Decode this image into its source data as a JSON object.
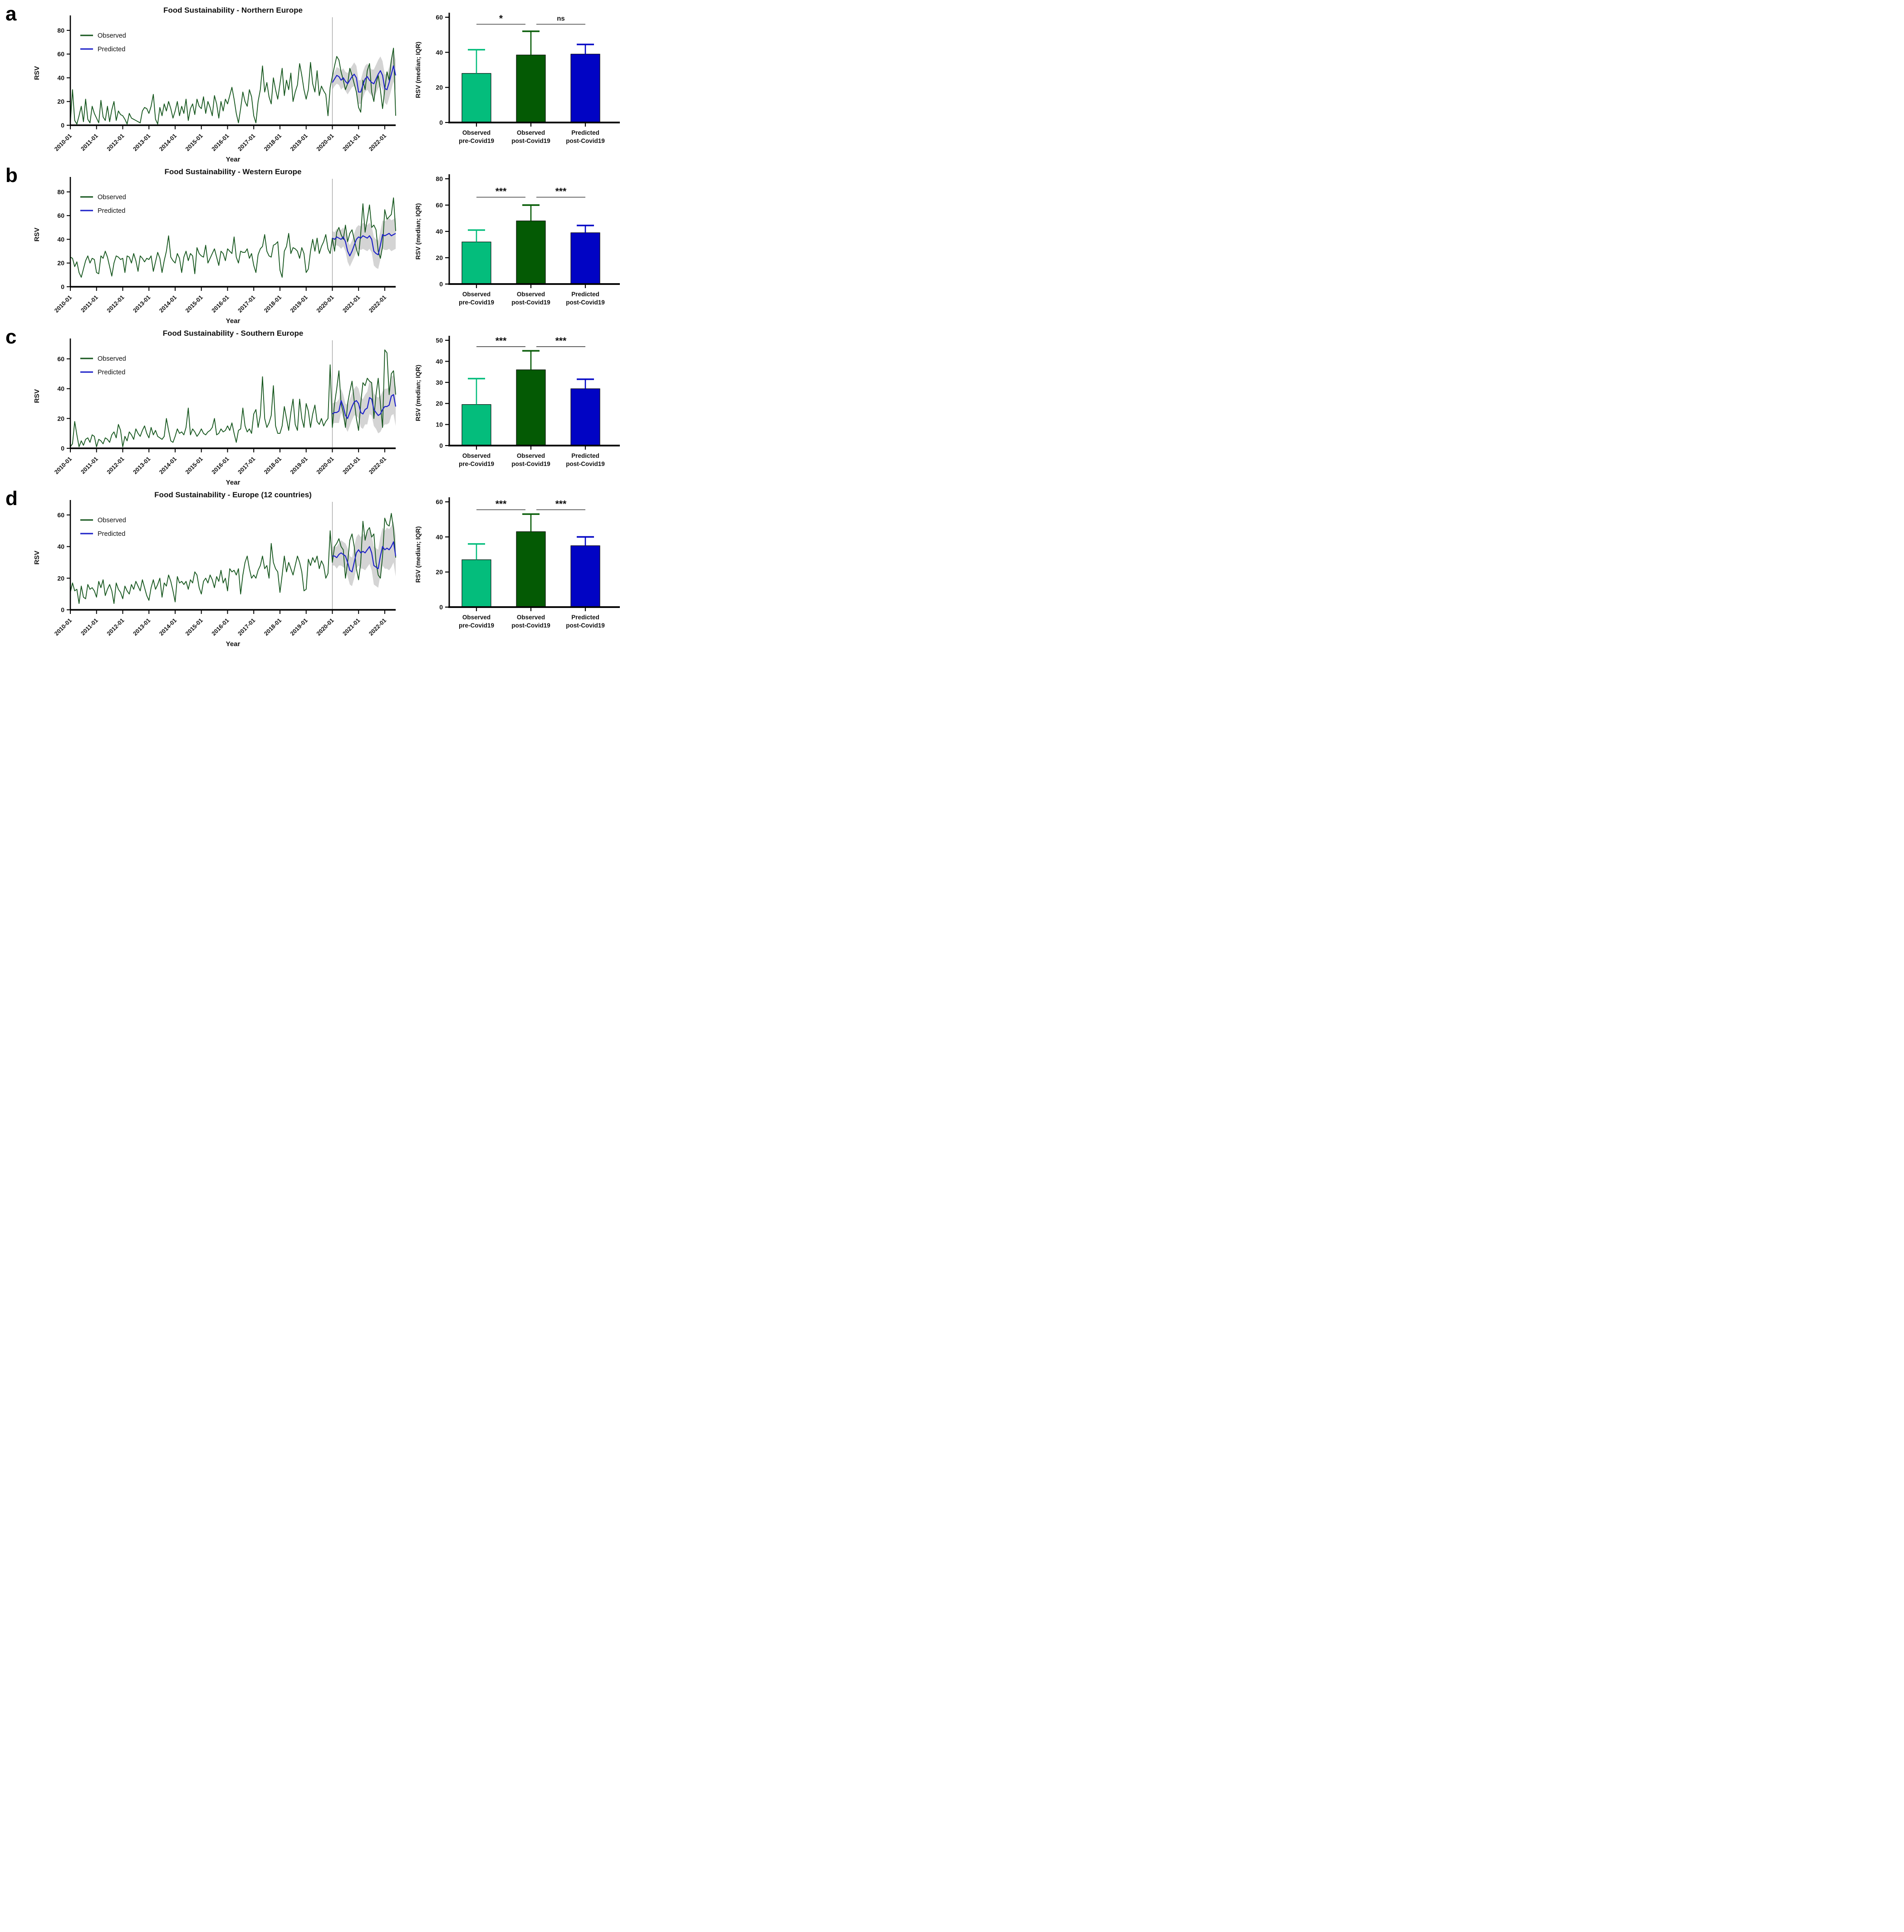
{
  "colors": {
    "observed_line": "#15561d",
    "predicted_line": "#1c20c8",
    "ci_band": "#c9c9c9",
    "divider": "#9a9a9a",
    "bracket": "#5a5a5a",
    "bar_pre_covid": "#04bd7c",
    "bar_post_covid_observed": "#045a04",
    "bar_post_covid_predicted": "#0104c4"
  },
  "chart_data": [
    {
      "panel": "a",
      "type": "line",
      "title": "Food Sustainability - Northern Europe",
      "xlabel": "Year",
      "ylabel": "RSV",
      "legend": [
        "Observed",
        "Predicted"
      ],
      "yticks": [
        0,
        20,
        40,
        60,
        80
      ],
      "ymax": 88,
      "xtick_labels": [
        "2010-01",
        "2011-01",
        "2012-01",
        "2013-01",
        "2014-01",
        "2015-01",
        "2016-01",
        "2017-01",
        "2018-01",
        "2019-01",
        "2020-01",
        "2021-01",
        "2022-01"
      ],
      "divider_index": 120,
      "pred_start": 120,
      "observed": [
        2,
        30,
        4,
        1,
        8,
        16,
        3,
        22,
        5,
        2,
        16,
        10,
        6,
        2,
        21,
        7,
        4,
        16,
        3,
        13,
        20,
        4,
        12,
        9,
        8,
        5,
        1,
        10,
        6,
        5,
        4,
        3,
        2,
        12,
        15,
        14,
        10,
        16,
        26,
        5,
        1,
        15,
        8,
        18,
        12,
        20,
        14,
        6,
        12,
        20,
        8,
        16,
        10,
        22,
        4,
        14,
        18,
        9,
        22,
        16,
        14,
        24,
        10,
        20,
        15,
        8,
        25,
        18,
        6,
        20,
        12,
        22,
        18,
        25,
        32,
        22,
        10,
        2,
        14,
        28,
        20,
        16,
        30,
        24,
        8,
        2,
        20,
        30,
        50,
        28,
        36,
        24,
        18,
        40,
        30,
        22,
        35,
        48,
        25,
        38,
        30,
        44,
        20,
        28,
        34,
        52,
        42,
        30,
        22,
        30,
        53,
        35,
        28,
        46,
        25,
        33,
        29,
        26,
        8,
        32,
        41,
        50,
        58,
        55,
        45,
        38,
        30,
        35,
        48,
        42,
        35,
        28,
        15,
        11,
        38,
        30,
        46,
        52,
        28,
        20,
        35,
        42,
        30,
        14,
        30,
        45,
        38,
        55,
        65,
        8
      ],
      "predicted": [
        36,
        39,
        42,
        41,
        38,
        40,
        37,
        35,
        38,
        41,
        43,
        40,
        28,
        28,
        34,
        39,
        41,
        38,
        36,
        35,
        39,
        43,
        46,
        42,
        31,
        30,
        36,
        43,
        50,
        42
      ],
      "ci_lower": [
        30,
        33,
        35,
        34,
        30,
        32,
        29,
        26,
        29,
        32,
        33,
        30,
        18,
        18,
        23,
        28,
        30,
        27,
        25,
        23,
        27,
        31,
        34,
        30,
        19,
        17,
        23,
        30,
        37,
        29
      ],
      "ci_upper": [
        42,
        45,
        49,
        48,
        46,
        48,
        45,
        44,
        47,
        50,
        53,
        50,
        38,
        38,
        45,
        50,
        52,
        49,
        47,
        47,
        51,
        55,
        58,
        54,
        43,
        43,
        49,
        56,
        63,
        55
      ]
    },
    {
      "panel": "a",
      "type": "bar",
      "ylabel": "RSV (median; IQR)",
      "yticks": [
        0,
        20,
        40,
        60
      ],
      "ymax": 60,
      "categories": [
        [
          "Observed",
          "pre-Covid19"
        ],
        [
          "Observed",
          "post-Covid19"
        ],
        [
          "Predicted",
          "post-Covid19"
        ]
      ],
      "values": [
        28,
        38.5,
        39
      ],
      "errors_upper": [
        41.5,
        52,
        44.5
      ],
      "bar_color_keys": [
        "bar_pre_covid",
        "bar_post_covid_observed",
        "bar_post_covid_predicted"
      ],
      "significance": [
        {
          "pair": [
            0,
            1
          ],
          "label": "*"
        },
        {
          "pair": [
            1,
            2
          ],
          "label": "ns"
        }
      ],
      "sig_y": 56
    },
    {
      "panel": "b",
      "type": "line",
      "title": "Food Sustainability - Western Europe",
      "xlabel": "Year",
      "ylabel": "RSV",
      "legend": [
        "Observed",
        "Predicted"
      ],
      "yticks": [
        0,
        20,
        40,
        60,
        80
      ],
      "ymax": 88,
      "xtick_labels": [
        "2010-01",
        "2011-01",
        "2012-01",
        "2013-01",
        "2014-01",
        "2015-01",
        "2016-01",
        "2017-01",
        "2018-01",
        "2019-01",
        "2020-01",
        "2021-01",
        "2022-01"
      ],
      "divider_index": 120,
      "pred_start": 120,
      "observed": [
        25,
        24,
        17,
        21,
        12,
        8,
        15,
        22,
        26,
        20,
        24,
        23,
        12,
        11,
        26,
        24,
        30,
        25,
        17,
        9,
        20,
        26,
        25,
        23,
        24,
        12,
        26,
        25,
        20,
        28,
        22,
        13,
        26,
        24,
        21,
        24,
        23,
        26,
        13,
        21,
        29,
        24,
        12,
        22,
        30,
        43,
        25,
        22,
        20,
        28,
        24,
        12,
        25,
        30,
        22,
        28,
        26,
        11,
        33,
        28,
        26,
        25,
        35,
        20,
        24,
        28,
        32,
        25,
        18,
        30,
        28,
        22,
        32,
        30,
        28,
        42,
        25,
        20,
        30,
        29,
        29,
        32,
        24,
        28,
        18,
        12,
        27,
        32,
        34,
        44,
        30,
        26,
        25,
        35,
        36,
        38,
        14,
        8,
        30,
        34,
        45,
        28,
        33,
        32,
        30,
        24,
        33,
        28,
        12,
        15,
        30,
        40,
        30,
        41,
        28,
        34,
        38,
        44,
        32,
        28,
        41,
        30,
        46,
        50,
        44,
        40,
        52,
        38,
        45,
        48,
        40,
        32,
        26,
        45,
        70,
        46,
        57,
        69,
        50,
        52,
        48,
        30,
        24,
        34,
        65,
        57,
        59,
        61,
        75,
        47
      ],
      "predicted": [
        41,
        40,
        42,
        41,
        40,
        42,
        38,
        30,
        26,
        30,
        35,
        40,
        42,
        41,
        43,
        42,
        41,
        43,
        40,
        30,
        28,
        27,
        35,
        44,
        43,
        44,
        45,
        43,
        44,
        45
      ],
      "ci_lower": [
        35,
        34,
        35,
        34,
        32,
        34,
        30,
        21,
        17,
        21,
        25,
        30,
        32,
        31,
        32,
        31,
        30,
        32,
        29,
        18,
        16,
        15,
        23,
        32,
        31,
        31,
        32,
        30,
        31,
        32
      ],
      "ci_upper": [
        47,
        46,
        49,
        48,
        48,
        50,
        46,
        39,
        35,
        39,
        45,
        50,
        52,
        51,
        54,
        53,
        52,
        54,
        51,
        42,
        40,
        39,
        47,
        56,
        55,
        57,
        58,
        56,
        57,
        58
      ]
    },
    {
      "panel": "b",
      "type": "bar",
      "ylabel": "RSV (median; IQR)",
      "yticks": [
        0,
        20,
        40,
        60,
        80
      ],
      "ymax": 80,
      "categories": [
        [
          "Observed",
          "pre-Covid19"
        ],
        [
          "Observed",
          "post-Covid19"
        ],
        [
          "Predicted",
          "post-Covid19"
        ]
      ],
      "values": [
        32,
        48,
        39
      ],
      "errors_upper": [
        41,
        60,
        44.5
      ],
      "bar_color_keys": [
        "bar_pre_covid",
        "bar_post_covid_observed",
        "bar_post_covid_predicted"
      ],
      "significance": [
        {
          "pair": [
            0,
            1
          ],
          "label": "***"
        },
        {
          "pair": [
            1,
            2
          ],
          "label": "***"
        }
      ],
      "sig_y": 66
    },
    {
      "panel": "c",
      "type": "line",
      "title": "Food Sustainability - Southern Europe",
      "xlabel": "Year",
      "ylabel": "RSV",
      "legend": [
        "Observed",
        "Predicted"
      ],
      "yticks": [
        0,
        20,
        40,
        60
      ],
      "ymax": 70,
      "xtick_labels": [
        "2010-01",
        "2011-01",
        "2012-01",
        "2013-01",
        "2014-01",
        "2015-01",
        "2016-01",
        "2017-01",
        "2018-01",
        "2019-01",
        "2020-01",
        "2021-01",
        "2022-01"
      ],
      "divider_index": 120,
      "pred_start": 120,
      "observed": [
        1,
        3,
        18,
        9,
        1,
        5,
        2,
        6,
        7,
        4,
        9,
        8,
        1,
        6,
        5,
        3,
        7,
        6,
        4,
        9,
        11,
        7,
        16,
        12,
        1,
        8,
        5,
        11,
        9,
        6,
        13,
        10,
        8,
        12,
        15,
        10,
        7,
        14,
        9,
        12,
        8,
        7,
        6,
        8,
        20,
        12,
        5,
        4,
        8,
        13,
        10,
        11,
        9,
        14,
        27,
        9,
        13,
        11,
        8,
        10,
        13,
        10,
        9,
        11,
        12,
        14,
        20,
        9,
        10,
        13,
        11,
        12,
        15,
        12,
        17,
        10,
        4,
        12,
        13,
        27,
        15,
        11,
        13,
        10,
        23,
        26,
        14,
        22,
        48,
        20,
        14,
        17,
        22,
        42,
        15,
        10,
        10,
        15,
        28,
        20,
        12,
        24,
        33,
        16,
        12,
        33,
        20,
        14,
        30,
        25,
        14,
        23,
        29,
        18,
        16,
        20,
        15,
        18,
        20,
        56,
        14,
        30,
        40,
        52,
        30,
        24,
        14,
        30,
        38,
        45,
        32,
        20,
        12,
        30,
        44,
        42,
        47,
        45,
        44,
        20,
        36,
        47,
        30,
        14,
        66,
        64,
        36,
        50,
        52,
        36
      ],
      "predicted": [
        23,
        24,
        24,
        25,
        32,
        28,
        22,
        20,
        24,
        28,
        31,
        32,
        30,
        24,
        23,
        26,
        27,
        34,
        33,
        26,
        24,
        22,
        23,
        26,
        28,
        28,
        29,
        35,
        36,
        28
      ],
      "ci_lower": [
        16,
        17,
        17,
        17,
        24,
        20,
        14,
        11,
        15,
        19,
        22,
        22,
        20,
        14,
        13,
        16,
        16,
        23,
        22,
        15,
        13,
        10,
        11,
        14,
        16,
        16,
        17,
        22,
        23,
        15
      ],
      "ci_upper": [
        30,
        31,
        31,
        33,
        40,
        36,
        30,
        29,
        33,
        37,
        40,
        42,
        40,
        34,
        33,
        36,
        38,
        45,
        44,
        37,
        35,
        34,
        35,
        38,
        40,
        40,
        41,
        48,
        49,
        41
      ]
    },
    {
      "panel": "c",
      "type": "bar",
      "ylabel": "RSV (median; IQR)",
      "yticks": [
        0,
        10,
        20,
        30,
        40,
        50
      ],
      "ymax": 50,
      "categories": [
        [
          "Observed",
          "pre-Covid19"
        ],
        [
          "Observed",
          "post-Covid19"
        ],
        [
          "Predicted",
          "post-Covid19"
        ]
      ],
      "values": [
        19.5,
        36,
        27
      ],
      "errors_upper": [
        31.8,
        45,
        31.5
      ],
      "bar_color_keys": [
        "bar_pre_covid",
        "bar_post_covid_observed",
        "bar_post_covid_predicted"
      ],
      "significance": [
        {
          "pair": [
            0,
            1
          ],
          "label": "***"
        },
        {
          "pair": [
            1,
            2
          ],
          "label": "***"
        }
      ],
      "sig_y": 47
    },
    {
      "panel": "d",
      "type": "line",
      "title": "Food Sustainability - Europe (12 countries)",
      "xlabel": "Year",
      "ylabel": "RSV",
      "legend": [
        "Observed",
        "Predicted"
      ],
      "yticks": [
        0,
        20,
        40,
        60
      ],
      "ymax": 66,
      "xtick_labels": [
        "2010-01",
        "2011-01",
        "2012-01",
        "2013-01",
        "2014-01",
        "2015-01",
        "2016-01",
        "2017-01",
        "2018-01",
        "2019-01",
        "2020-01",
        "2021-01",
        "2022-01"
      ],
      "divider_index": 120,
      "pred_start": 120,
      "observed": [
        11,
        17,
        12,
        13,
        4,
        15,
        8,
        7,
        16,
        13,
        14,
        12,
        8,
        18,
        14,
        19,
        9,
        13,
        16,
        12,
        4,
        17,
        13,
        11,
        7,
        15,
        12,
        10,
        16,
        13,
        18,
        15,
        12,
        19,
        14,
        9,
        6,
        14,
        19,
        13,
        16,
        20,
        8,
        17,
        15,
        22,
        18,
        12,
        5,
        21,
        17,
        18,
        16,
        18,
        13,
        19,
        17,
        24,
        22,
        14,
        10,
        18,
        20,
        17,
        22,
        19,
        14,
        21,
        18,
        25,
        17,
        20,
        12,
        26,
        24,
        25,
        22,
        26,
        10,
        22,
        30,
        34,
        26,
        20,
        22,
        20,
        25,
        28,
        34,
        26,
        28,
        20,
        42,
        30,
        26,
        24,
        11,
        22,
        34,
        24,
        30,
        26,
        22,
        28,
        34,
        30,
        24,
        12,
        13,
        32,
        28,
        33,
        30,
        34,
        26,
        31,
        28,
        20,
        23,
        50,
        30,
        40,
        42,
        45,
        40,
        38,
        20,
        30,
        44,
        48,
        40,
        26,
        19,
        30,
        56,
        44,
        50,
        52,
        46,
        48,
        30,
        22,
        20,
        34,
        58,
        54,
        53,
        61,
        51,
        33
      ],
      "predicted": [
        34,
        34,
        33,
        35,
        36,
        35,
        34,
        30,
        25,
        24,
        30,
        36,
        38,
        36,
        37,
        36,
        38,
        40,
        36,
        28,
        27,
        26,
        34,
        40,
        38,
        39,
        38,
        40,
        43,
        34
      ],
      "ci_lower": [
        28,
        28,
        26,
        28,
        28,
        27,
        26,
        21,
        16,
        15,
        20,
        26,
        28,
        26,
        26,
        25,
        27,
        29,
        25,
        16,
        15,
        14,
        22,
        28,
        26,
        26,
        25,
        27,
        30,
        21
      ],
      "ci_upper": [
        40,
        40,
        40,
        42,
        44,
        43,
        42,
        39,
        34,
        33,
        40,
        46,
        48,
        46,
        48,
        47,
        49,
        51,
        47,
        40,
        39,
        38,
        46,
        52,
        50,
        52,
        51,
        53,
        56,
        47
      ]
    },
    {
      "panel": "d",
      "type": "bar",
      "ylabel": "RSV (median; IQR)",
      "yticks": [
        0,
        20,
        40,
        60
      ],
      "ymax": 60,
      "categories": [
        [
          "Observed",
          "pre-Covid19"
        ],
        [
          "Observed",
          "post-Covid19"
        ],
        [
          "Predicted",
          "post-Covid19"
        ]
      ],
      "values": [
        27,
        43,
        35
      ],
      "errors_upper": [
        36,
        53,
        40
      ],
      "bar_color_keys": [
        "bar_pre_covid",
        "bar_post_covid_observed",
        "bar_post_covid_predicted"
      ],
      "significance": [
        {
          "pair": [
            0,
            1
          ],
          "label": "***"
        },
        {
          "pair": [
            1,
            2
          ],
          "label": "***"
        }
      ],
      "sig_y": 55.5
    }
  ]
}
